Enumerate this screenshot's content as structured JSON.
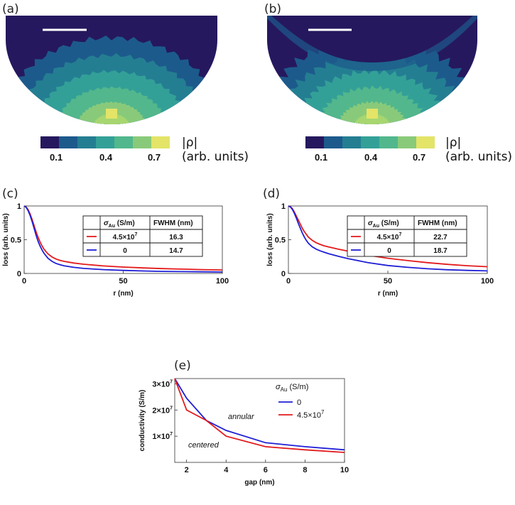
{
  "figure": {
    "panels": {
      "a": {
        "label": "(a)"
      },
      "b": {
        "label": "(b)"
      },
      "c": {
        "label": "(c)"
      },
      "d": {
        "label": "(d)"
      },
      "e": {
        "label": "(e)"
      }
    },
    "colorbar": {
      "symbol": "|ρ|",
      "units": "(arb. units)",
      "ticks": [
        "0.1",
        "0.4",
        "0.7"
      ],
      "colors": [
        "#26185e",
        "#1d5a8c",
        "#247e92",
        "#33a098",
        "#52b78c",
        "#89ca7a",
        "#e3e468"
      ]
    },
    "contour_colors": [
      "#26185e",
      "#1d5a8c",
      "#247e92",
      "#33a098",
      "#52b78c",
      "#89ca7a",
      "#a7d670",
      "#e3e468"
    ]
  },
  "chart_data": [
    {
      "panel": "c",
      "type": "line",
      "xlabel": "r (nm)",
      "ylabel": "loss (arb. units)",
      "xlim": [
        0,
        100
      ],
      "ylim": [
        0,
        1
      ],
      "xticks": [
        "0",
        "50",
        "100"
      ],
      "yticks": [
        "0",
        "0.5",
        "1"
      ],
      "table": {
        "headers": [
          "σAu (S/m)",
          "FWHM (nm)"
        ],
        "header_sigma": "σ",
        "header_sub": "Au",
        "header_unit": " (S/m)",
        "rows": [
          {
            "color": "#e31a1c",
            "sigma": "4.5×10",
            "sigma_exp": "7",
            "fwhm": "16.3"
          },
          {
            "color": "#1f1fd6",
            "sigma": "0",
            "sigma_exp": "",
            "fwhm": "14.7"
          }
        ]
      },
      "series": [
        {
          "name": "4.5×10^7",
          "color": "#e31a1c",
          "x": [
            0,
            1,
            2,
            3,
            4,
            5,
            6,
            7,
            8,
            9,
            10,
            12,
            14,
            16,
            18,
            20,
            25,
            30,
            40,
            50,
            60,
            70,
            80,
            90,
            100
          ],
          "y": [
            1.0,
            0.985,
            0.945,
            0.88,
            0.8,
            0.71,
            0.62,
            0.54,
            0.47,
            0.41,
            0.36,
            0.29,
            0.245,
            0.215,
            0.195,
            0.18,
            0.155,
            0.137,
            0.112,
            0.095,
            0.082,
            0.072,
            0.064,
            0.057,
            0.052
          ]
        },
        {
          "name": "0",
          "color": "#1f1fd6",
          "x": [
            0,
            1,
            2,
            3,
            4,
            5,
            6,
            7,
            8,
            9,
            10,
            12,
            14,
            16,
            18,
            20,
            25,
            30,
            40,
            50,
            60,
            70,
            80,
            90,
            100
          ],
          "y": [
            1.0,
            0.98,
            0.93,
            0.86,
            0.77,
            0.67,
            0.57,
            0.48,
            0.41,
            0.35,
            0.3,
            0.225,
            0.18,
            0.15,
            0.13,
            0.115,
            0.09,
            0.075,
            0.057,
            0.045,
            0.037,
            0.031,
            0.027,
            0.024,
            0.021
          ]
        }
      ]
    },
    {
      "panel": "d",
      "type": "line",
      "xlabel": "r (nm)",
      "ylabel": "loss (arb. units)",
      "xlim": [
        0,
        100
      ],
      "ylim": [
        0,
        1
      ],
      "xticks": [
        "0",
        "50",
        "100"
      ],
      "yticks": [
        "0",
        "0.5",
        "1"
      ],
      "table": {
        "headers": [
          "σAu (S/m)",
          "FWHM (nm)"
        ],
        "header_sigma": "σ",
        "header_sub": "Au",
        "header_unit": " (S/m)",
        "rows": [
          {
            "color": "#e31a1c",
            "sigma": "4.5×10",
            "sigma_exp": "7",
            "fwhm": "22.7"
          },
          {
            "color": "#1f1fd6",
            "sigma": "0",
            "sigma_exp": "",
            "fwhm": "18.7"
          }
        ]
      },
      "series": [
        {
          "name": "4.5×10^7",
          "color": "#e31a1c",
          "x": [
            0,
            1,
            2,
            3,
            4,
            5,
            6,
            7,
            8,
            9,
            10,
            12,
            14,
            16,
            18,
            20,
            25,
            30,
            40,
            50,
            60,
            70,
            80,
            90,
            100
          ],
          "y": [
            1.0,
            0.99,
            0.96,
            0.91,
            0.85,
            0.79,
            0.73,
            0.67,
            0.62,
            0.58,
            0.54,
            0.49,
            0.455,
            0.43,
            0.41,
            0.395,
            0.36,
            0.33,
            0.27,
            0.225,
            0.19,
            0.16,
            0.135,
            0.115,
            0.1
          ]
        },
        {
          "name": "0",
          "color": "#1f1fd6",
          "x": [
            0,
            1,
            2,
            3,
            4,
            5,
            6,
            7,
            8,
            9,
            10,
            12,
            14,
            16,
            18,
            20,
            25,
            30,
            40,
            50,
            60,
            70,
            80,
            90,
            100
          ],
          "y": [
            1.0,
            0.985,
            0.95,
            0.89,
            0.82,
            0.74,
            0.67,
            0.6,
            0.54,
            0.49,
            0.45,
            0.395,
            0.36,
            0.335,
            0.315,
            0.295,
            0.255,
            0.22,
            0.16,
            0.118,
            0.09,
            0.07,
            0.055,
            0.045,
            0.038
          ]
        }
      ]
    },
    {
      "panel": "e",
      "type": "line",
      "xlabel": "gap (nm)",
      "ylabel": "conductivity (S/m)",
      "xlim": [
        1.4,
        10
      ],
      "ylim": [
        0,
        3.2
      ],
      "xticks": [
        "2",
        "4",
        "6",
        "8",
        "10"
      ],
      "yticks": [
        {
          "v": 1,
          "base": "1×10",
          "exp": "7"
        },
        {
          "v": 2,
          "base": "2×10",
          "exp": "7"
        },
        {
          "v": 3,
          "base": "3×10",
          "exp": "7"
        }
      ],
      "legend": {
        "title_sigma": "σ",
        "title_sub": "Au",
        "title_unit": " (S/m)",
        "entries": [
          {
            "color": "#1f1fd6",
            "base": "0",
            "exp": ""
          },
          {
            "color": "#e31a1c",
            "base": "4.5×10",
            "exp": "7"
          }
        ]
      },
      "annotations": {
        "annular": "annular",
        "centered": "centered"
      },
      "series": [
        {
          "name": "0",
          "color": "#1f1fd6",
          "x": [
            1.4,
            2,
            3,
            4,
            6,
            8,
            10
          ],
          "y": [
            3.2,
            2.45,
            1.6,
            1.22,
            0.75,
            0.6,
            0.48
          ]
        },
        {
          "name": "4.5×10^7",
          "color": "#e31a1c",
          "x": [
            1.4,
            2,
            3,
            4,
            6,
            8,
            10
          ],
          "y": [
            3.2,
            2.0,
            1.6,
            1.0,
            0.6,
            0.48,
            0.38
          ]
        }
      ]
    }
  ]
}
